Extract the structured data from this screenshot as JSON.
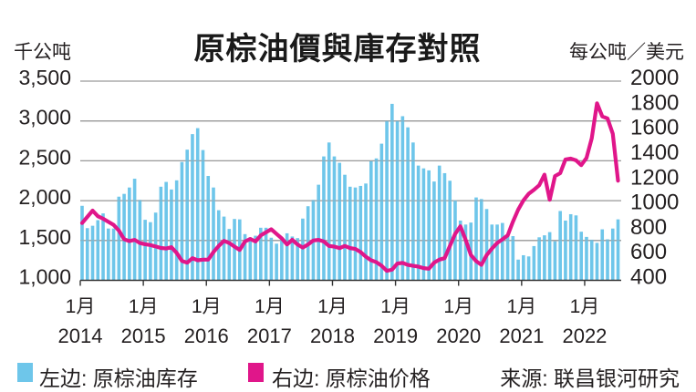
{
  "chart_data": {
    "type": "bar",
    "title": "原棕油價與庫存對照",
    "ylabel_left": "千公吨",
    "ylabel_right": "每公吨／美元",
    "xlabel": "",
    "ylim_left": [
      1000,
      3500
    ],
    "ylim_right": [
      400,
      2000
    ],
    "grid": true,
    "legend_position": "bottom",
    "yticks_left": [
      {
        "value": 1000,
        "label": "1,000"
      },
      {
        "value": 1500,
        "label": "1,500"
      },
      {
        "value": 2000,
        "label": "2,000"
      },
      {
        "value": 2500,
        "label": "2,500"
      },
      {
        "value": 3000,
        "label": "3,000"
      },
      {
        "value": 3500,
        "label": "3,500"
      }
    ],
    "yticks_right": [
      {
        "value": 400,
        "label": "400"
      },
      {
        "value": 600,
        "label": "600"
      },
      {
        "value": 800,
        "label": "800"
      },
      {
        "value": 1000,
        "label": "1000"
      },
      {
        "value": 1200,
        "label": "1200"
      },
      {
        "value": 1400,
        "label": "1400"
      },
      {
        "value": 1600,
        "label": "1600"
      },
      {
        "value": 1800,
        "label": "1800"
      },
      {
        "value": 2000,
        "label": "2000"
      }
    ],
    "xticks": [
      {
        "x": "2014-01",
        "month_label": "1月",
        "year_label": "2014"
      },
      {
        "x": "2015-01",
        "month_label": "1月",
        "year_label": "2015"
      },
      {
        "x": "2016-01",
        "month_label": "1月",
        "year_label": "2016"
      },
      {
        "x": "2017-01",
        "month_label": "1月",
        "year_label": "2017"
      },
      {
        "x": "2018-01",
        "month_label": "1月",
        "year_label": "2018"
      },
      {
        "x": "2019-01",
        "month_label": "1月",
        "year_label": "2019"
      },
      {
        "x": "2020-01",
        "month_label": "1月",
        "year_label": "2020"
      },
      {
        "x": "2021-01",
        "month_label": "1月",
        "year_label": "2021"
      },
      {
        "x": "2022-01",
        "month_label": "1月",
        "year_label": "2022"
      }
    ],
    "x": [
      "2014-01",
      "2014-02",
      "2014-03",
      "2014-04",
      "2014-05",
      "2014-06",
      "2014-07",
      "2014-08",
      "2014-09",
      "2014-10",
      "2014-11",
      "2014-12",
      "2015-01",
      "2015-02",
      "2015-03",
      "2015-04",
      "2015-05",
      "2015-06",
      "2015-07",
      "2015-08",
      "2015-09",
      "2015-10",
      "2015-11",
      "2015-12",
      "2016-01",
      "2016-02",
      "2016-03",
      "2016-04",
      "2016-05",
      "2016-06",
      "2016-07",
      "2016-08",
      "2016-09",
      "2016-10",
      "2016-11",
      "2016-12",
      "2017-01",
      "2017-02",
      "2017-03",
      "2017-04",
      "2017-05",
      "2017-06",
      "2017-07",
      "2017-08",
      "2017-09",
      "2017-10",
      "2017-11",
      "2017-12",
      "2018-01",
      "2018-02",
      "2018-03",
      "2018-04",
      "2018-05",
      "2018-06",
      "2018-07",
      "2018-08",
      "2018-09",
      "2018-10",
      "2018-11",
      "2018-12",
      "2019-01",
      "2019-02",
      "2019-03",
      "2019-04",
      "2019-05",
      "2019-06",
      "2019-07",
      "2019-08",
      "2019-09",
      "2019-10",
      "2019-11",
      "2019-12",
      "2020-01",
      "2020-02",
      "2020-03",
      "2020-04",
      "2020-05",
      "2020-06",
      "2020-07",
      "2020-08",
      "2020-09",
      "2020-10",
      "2020-11",
      "2020-12",
      "2021-01",
      "2021-02",
      "2021-03",
      "2021-04",
      "2021-05",
      "2021-06",
      "2021-07",
      "2021-08",
      "2021-09",
      "2021-10",
      "2021-11",
      "2021-12",
      "2022-01",
      "2022-02",
      "2022-03",
      "2022-04",
      "2022-05",
      "2022-06",
      "2022-07"
    ],
    "series": [
      {
        "name": "左边: 原棕油库存",
        "type": "bar",
        "axis": "left",
        "color": "#6ec6ea",
        "values": [
          1935,
          1655,
          1685,
          1755,
          1840,
          1650,
          1650,
          2050,
          2085,
          2165,
          2275,
          2010,
          1760,
          1730,
          1850,
          2175,
          2235,
          2140,
          2255,
          2485,
          2640,
          2835,
          2910,
          2635,
          2310,
          2165,
          1880,
          1800,
          1645,
          1770,
          1765,
          1580,
          1540,
          1560,
          1660,
          1660,
          1535,
          1460,
          1510,
          1590,
          1550,
          1530,
          1775,
          1930,
          2010,
          2200,
          2555,
          2730,
          2555,
          2475,
          2325,
          2175,
          2165,
          2185,
          2215,
          2495,
          2530,
          2715,
          3000,
          3215,
          3000,
          3060,
          2920,
          2730,
          2440,
          2405,
          2380,
          2240,
          2440,
          2345,
          2250,
          2005,
          1750,
          1700,
          1725,
          2040,
          2020,
          1895,
          1700,
          1700,
          1720,
          1570,
          1555,
          1260,
          1315,
          1300,
          1430,
          1540,
          1565,
          1605,
          1490,
          1870,
          1750,
          1830,
          1815,
          1610,
          1545,
          1510,
          1470,
          1640,
          1515,
          1650,
          1765
        ]
      },
      {
        "name": "右边: 原棕油价格",
        "type": "line",
        "axis": "right",
        "color": "#e0168a",
        "values": [
          860,
          910,
          960,
          915,
          895,
          870,
          845,
          800,
          730,
          715,
          725,
          700,
          690,
          683,
          672,
          660,
          656,
          666,
          620,
          556,
          542,
          578,
          561,
          566,
          566,
          627,
          676,
          717,
          700,
          671,
          644,
          712,
          732,
          712,
          761,
          786,
          810,
          773,
          737,
          688,
          725,
          688,
          663,
          688,
          720,
          725,
          712,
          676,
          671,
          659,
          676,
          659,
          652,
          627,
          590,
          561,
          546,
          517,
          476,
          486,
          535,
          540,
          524,
          517,
          510,
          498,
          493,
          542,
          566,
          578,
          676,
          773,
          834,
          725,
          603,
          554,
          524,
          603,
          655,
          700,
          729,
          761,
          871,
          968,
          1042,
          1095,
          1127,
          1164,
          1249,
          1047,
          1237,
          1261,
          1371,
          1378,
          1364,
          1325,
          1383,
          1541,
          1822,
          1717,
          1700,
          1578,
          1200
        ]
      }
    ],
    "source": "来源: 联昌银河研究"
  }
}
